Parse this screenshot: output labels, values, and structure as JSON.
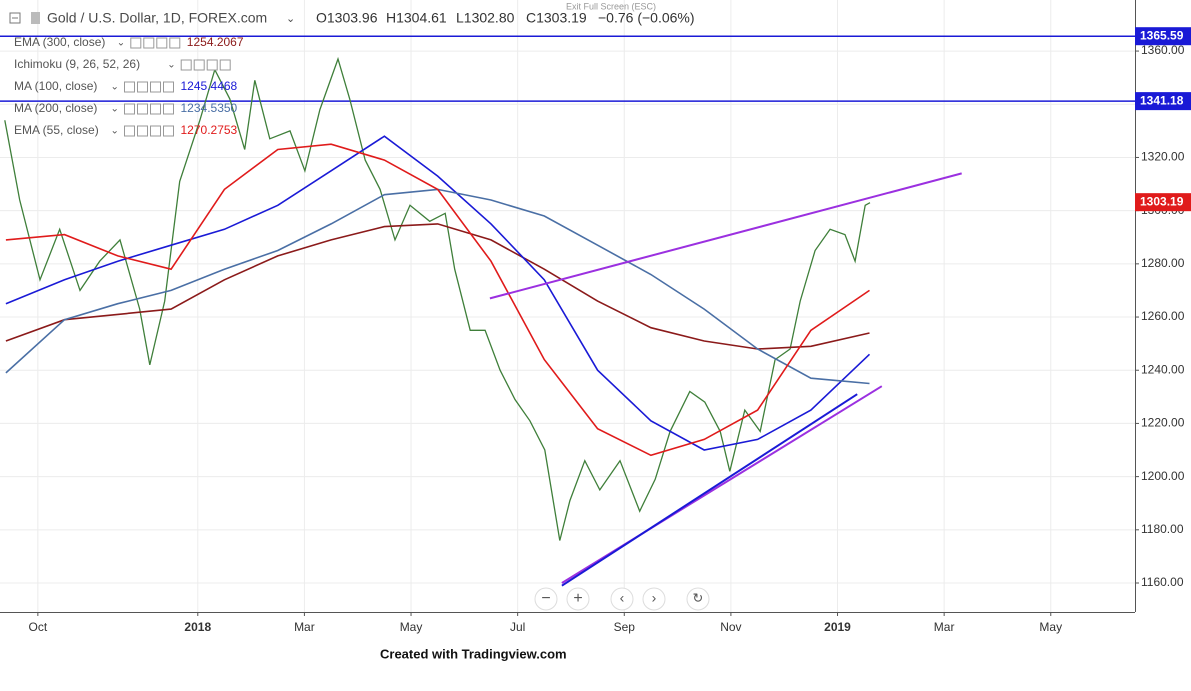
{
  "header": {
    "symbol": "Gold / U.S. Dollar, 1D, FOREX.com",
    "open": "O1303.96",
    "high": "H1304.61",
    "low": "L1302.80",
    "close": "C1303.19",
    "change": "−0.76 (−0.06%)",
    "exit_fullscreen": "Exit Full Screen (ESC)"
  },
  "footer": "Created with Tradingview.com",
  "chart_data": {
    "type": "line",
    "xlim": [
      -0.71,
      20.58
    ],
    "xticks": [
      {
        "value": 0,
        "label": "Oct"
      },
      {
        "value": 3,
        "label": "2018"
      },
      {
        "value": 5,
        "label": "Mar"
      },
      {
        "value": 7,
        "label": "May"
      },
      {
        "value": 9,
        "label": "Jul"
      },
      {
        "value": 11,
        "label": "Sep"
      },
      {
        "value": 13,
        "label": "Nov"
      },
      {
        "value": 15,
        "label": "2019"
      },
      {
        "value": 17,
        "label": "Mar"
      },
      {
        "value": 19,
        "label": "May"
      }
    ],
    "ylim": [
      1149.1,
      1379.2
    ],
    "yticks": [
      {
        "value": 1160,
        "label": "1160.00"
      },
      {
        "value": 1180,
        "label": "1180.00"
      },
      {
        "value": 1200,
        "label": "1200.00"
      },
      {
        "value": 1220,
        "label": "1220.00"
      },
      {
        "value": 1240,
        "label": "1240.00"
      },
      {
        "value": 1260,
        "label": "1260.00"
      },
      {
        "value": 1280,
        "label": "1280.00"
      },
      {
        "value": 1300,
        "label": "1300.00"
      },
      {
        "value": 1320,
        "label": "1320.00"
      },
      {
        "value": 1340,
        "label": "1340.00"
      },
      {
        "value": 1360,
        "label": "1360.00"
      }
    ],
    "grid": true,
    "series": [
      {
        "color": "#3f7f3a",
        "x": [
          -0.62,
          -0.34,
          0.04,
          0.41,
          0.79,
          1.16,
          1.54,
          1.91,
          2.1,
          2.38,
          2.66,
          3.04,
          3.32,
          3.6,
          3.88,
          4.07,
          4.35,
          4.73,
          5.01,
          5.29,
          5.63,
          5.85,
          6.14,
          6.42,
          6.7,
          6.98,
          7.35,
          7.64,
          7.82,
          8.11,
          8.39,
          8.67,
          8.95,
          9.23,
          9.51,
          9.79,
          9.98,
          10.26,
          10.54,
          10.92,
          11.29,
          11.58,
          11.86,
          12.23,
          12.51,
          12.8,
          12.98,
          13.26,
          13.55,
          13.83,
          14.11,
          14.3,
          14.58,
          14.86,
          15.14,
          15.33,
          15.52,
          15.61
        ],
        "values": [
          1334,
          1304,
          1274,
          1293,
          1270,
          1281,
          1289,
          1263,
          1242,
          1266,
          1311,
          1334,
          1353,
          1342,
          1323,
          1349,
          1327,
          1330,
          1315,
          1338,
          1357,
          1342,
          1319,
          1308,
          1289,
          1302,
          1296,
          1299,
          1278,
          1255,
          1255,
          1240,
          1229,
          1221,
          1210,
          1176,
          1191,
          1206,
          1195,
          1206,
          1187,
          1199,
          1217,
          1232,
          1228,
          1217,
          1202,
          1225,
          1217,
          1244,
          1248,
          1266,
          1285,
          1293,
          1291,
          1281,
          1302,
          1303
        ]
      },
      {
        "name": "EMA (300, close)",
        "color": "#8b1a1a",
        "legend_value": "1254.2067",
        "x": [
          -0.6,
          0.5,
          1.5,
          2.5,
          3.5,
          4.5,
          5.5,
          6.5,
          7.5,
          8.5,
          9.5,
          10.5,
          11.5,
          12.5,
          13.5,
          14.5,
          15.6
        ],
        "values": [
          1251,
          1259,
          1261,
          1263,
          1274,
          1283,
          1289,
          1294,
          1295,
          1289,
          1278,
          1266,
          1256,
          1251,
          1248,
          1249,
          1254
        ]
      },
      {
        "name": "Ichimoku (9, 26, 52, 26)",
        "color": "#9a9a9a"
      },
      {
        "name": "MA (100, close)",
        "color": "#1a1ad6",
        "legend_value": "1245.4468",
        "x": [
          -0.6,
          0.5,
          1.5,
          2.5,
          3.5,
          4.5,
          5.5,
          6.5,
          7.5,
          8.5,
          9.5,
          10.5,
          11.5,
          12.5,
          13.5,
          14.5,
          15.6
        ],
        "values": [
          1265,
          1274,
          1281,
          1287,
          1293,
          1302,
          1315,
          1328,
          1313,
          1295,
          1274,
          1240,
          1221,
          1210,
          1214,
          1225,
          1246
        ]
      },
      {
        "name": "MA (200, close)",
        "color": "#4a6fa5",
        "legend_value": "1234.5350",
        "x": [
          -0.6,
          0.5,
          1.5,
          2.5,
          3.5,
          4.5,
          5.5,
          6.5,
          7.5,
          8.5,
          9.5,
          10.5,
          11.5,
          12.5,
          13.5,
          14.5,
          15.6
        ],
        "values": [
          1239,
          1259,
          1265,
          1270,
          1278,
          1285,
          1295,
          1306,
          1308,
          1304,
          1298,
          1287,
          1276,
          1263,
          1248,
          1237,
          1235
        ]
      },
      {
        "name": "EMA (55, close)",
        "color": "#e01b1b",
        "legend_value": "1270.2753",
        "x": [
          -0.6,
          0.5,
          1.5,
          2.5,
          3.5,
          4.5,
          5.5,
          6.5,
          7.5,
          8.5,
          9.5,
          10.5,
          11.5,
          12.5,
          13.5,
          14.5,
          15.6
        ],
        "values": [
          1289,
          1291,
          1283,
          1278,
          1308,
          1323,
          1325,
          1319,
          1308,
          1281,
          1244,
          1218,
          1208,
          1214,
          1225,
          1255,
          1270
        ]
      }
    ],
    "hlines": [
      {
        "value": 1365.59,
        "color": "#1a1ad6"
      },
      {
        "value": 1341.18,
        "color": "#1a1ad6"
      }
    ],
    "trendlines": [
      {
        "color": "#9b30e0",
        "x": [
          8.48,
          17.33
        ],
        "values": [
          1267,
          1314
        ]
      },
      {
        "color": "#9b30e0",
        "x": [
          9.83,
          15.83
        ],
        "values": [
          1160,
          1234
        ]
      },
      {
        "color": "#1a1ad6",
        "x": [
          9.83,
          15.37
        ],
        "values": [
          1159,
          1231
        ]
      }
    ],
    "last_price": 1303.19,
    "last_price_color": "#e01b1b"
  }
}
